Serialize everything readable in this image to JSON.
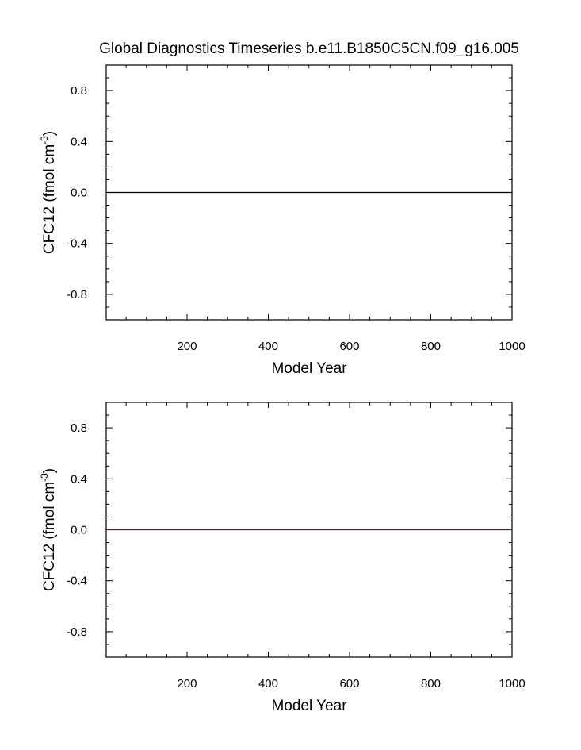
{
  "title": "Global Diagnostics Timeseries b.e11.B1850C5CN.f09_g16.005",
  "chart_data": [
    {
      "type": "line",
      "xlabel": "Model Year",
      "ylabel": "CFC12 (fmol cm",
      "ylabel_unit_exponent": "-3",
      "ylabel_close": ")",
      "xlim": [
        1,
        1000
      ],
      "ylim": [
        -1,
        1
      ],
      "x_ticks": [
        200,
        400,
        600,
        800,
        1000
      ],
      "x_tick_labels": [
        "200",
        "400",
        "600",
        "800",
        "1000"
      ],
      "y_ticks": [
        0.8,
        0.4,
        0.0,
        -0.4,
        -0.8
      ],
      "y_tick_labels": [
        "0.8",
        "0.4",
        "0.0",
        "-0.4",
        "-0.8"
      ],
      "grid": false,
      "series": [
        {
          "x": [
            1,
            1000
          ],
          "values": [
            0,
            0
          ],
          "color": "#000000"
        }
      ]
    },
    {
      "type": "line",
      "xlabel": "Model Year",
      "ylabel": "CFC12 (fmol cm",
      "ylabel_unit_exponent": "-3",
      "ylabel_close": ")",
      "xlim": [
        1,
        1000
      ],
      "ylim": [
        -1,
        1
      ],
      "x_ticks": [
        200,
        400,
        600,
        800,
        1000
      ],
      "x_tick_labels": [
        "200",
        "400",
        "600",
        "800",
        "1000"
      ],
      "y_ticks": [
        0.8,
        0.4,
        0.0,
        -0.4,
        -0.8
      ],
      "y_tick_labels": [
        "0.8",
        "0.4",
        "0.0",
        "-0.4",
        "-0.8"
      ],
      "grid": false,
      "series": [
        {
          "x": [
            1,
            1000
          ],
          "values": [
            0,
            0
          ],
          "color": "#8b0000"
        }
      ]
    }
  ]
}
